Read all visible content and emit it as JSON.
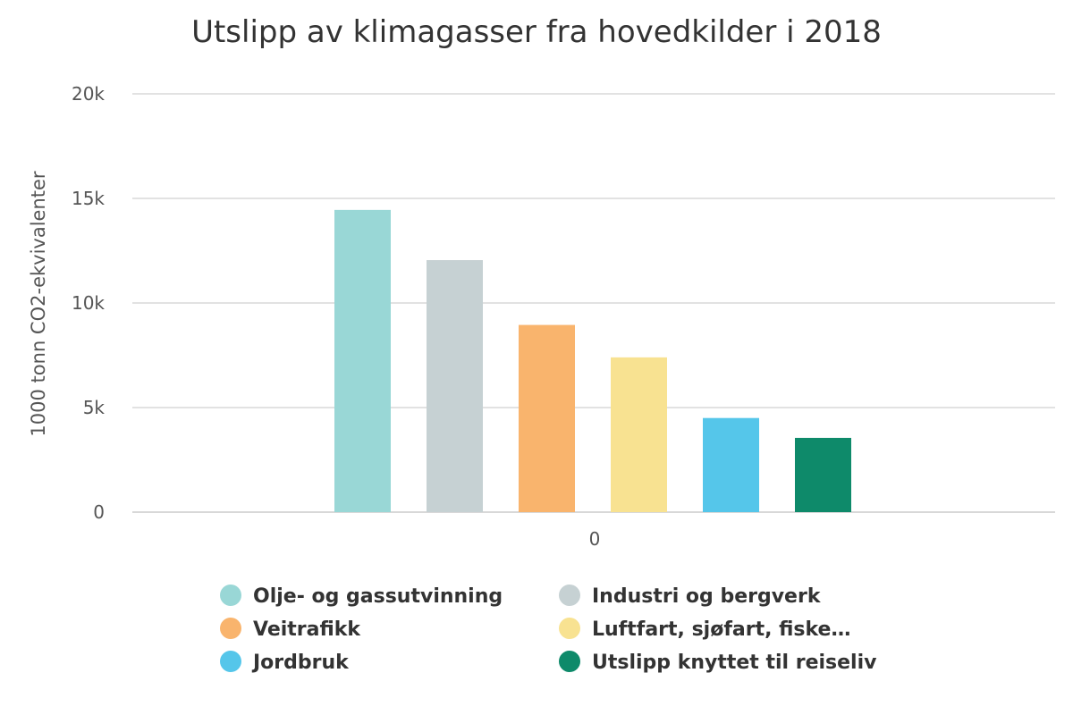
{
  "chart_data": {
    "type": "bar",
    "title": "Utslipp av klimagasser fra hovedkilder i 2018",
    "xlabel": "",
    "ylabel": "1000 tonn CO2-ekvivalenter",
    "categories": [
      "0"
    ],
    "ylim": [
      0,
      20000
    ],
    "yticks": [
      {
        "value": 0,
        "label": "0"
      },
      {
        "value": 5000,
        "label": "5k"
      },
      {
        "value": 10000,
        "label": "10k"
      },
      {
        "value": 15000,
        "label": "15k"
      },
      {
        "value": 20000,
        "label": "20k"
      }
    ],
    "grid": true,
    "legend_position": "bottom",
    "series": [
      {
        "name": "Olje- og gassutvinning",
        "values": [
          14450
        ],
        "color": "#99d7d6"
      },
      {
        "name": "Industri og bergverk",
        "values": [
          12050
        ],
        "color": "#c6d1d3"
      },
      {
        "name": "Veitrafikk",
        "values": [
          8950
        ],
        "color": "#f9b46d"
      },
      {
        "name": "Luftfart, sjøfart, fiske…",
        "values": [
          7400
        ],
        "color": "#f8e291"
      },
      {
        "name": "Jordbruk",
        "values": [
          4500
        ],
        "color": "#55c6ea"
      },
      {
        "name": "Utslipp knyttet til reiseliv",
        "values": [
          3550
        ],
        "color": "#0e8a6a"
      }
    ]
  }
}
